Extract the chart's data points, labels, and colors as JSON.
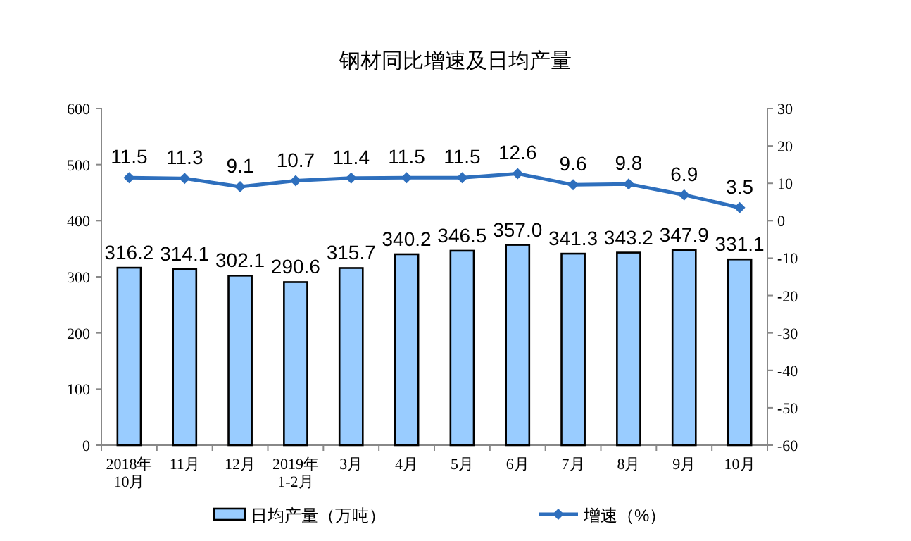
{
  "chart_data": {
    "type": "bar",
    "title": "钢材同比增速及日均产量",
    "categories": [
      "2018年\n10月",
      "11月",
      "12月",
      "2019年\n1-2月",
      "3月",
      "4月",
      "5月",
      "6月",
      "7月",
      "8月",
      "9月",
      "10月"
    ],
    "series": [
      {
        "name": "日均产量（万吨）",
        "color": "#99ccff",
        "values": [
          316.2,
          314.1,
          302.1,
          290.6,
          315.7,
          340.2,
          346.5,
          357.0,
          341.3,
          343.2,
          347.9,
          331.1
        ],
        "value_labels": [
          "316.2",
          "314.1",
          "302.1",
          "290.6",
          "315.7",
          "340.2",
          "346.5",
          "357.0",
          "341.3",
          "343.2",
          "347.9",
          "331.1"
        ]
      },
      {
        "name": "增速（%）",
        "type": "line",
        "axis": "y2",
        "color": "#2e6fbd",
        "marker": "diamond",
        "values": [
          11.5,
          11.3,
          9.1,
          10.7,
          11.4,
          11.5,
          11.5,
          12.6,
          9.6,
          9.8,
          6.9,
          3.5
        ],
        "value_labels": [
          "11.5",
          "11.3",
          "9.1",
          "10.7",
          "11.4",
          "11.5",
          "11.5",
          "12.6",
          "9.6",
          "9.8",
          "6.9",
          "3.5"
        ]
      }
    ],
    "ylim": [
      0,
      600
    ],
    "yticks": [
      0,
      100,
      200,
      300,
      400,
      500,
      600
    ],
    "y2lim": [
      -60,
      30
    ],
    "y2ticks": [
      -60,
      -50,
      -40,
      -30,
      -20,
      -10,
      0,
      10,
      20,
      30
    ],
    "grid": false,
    "legend": "bottom"
  }
}
